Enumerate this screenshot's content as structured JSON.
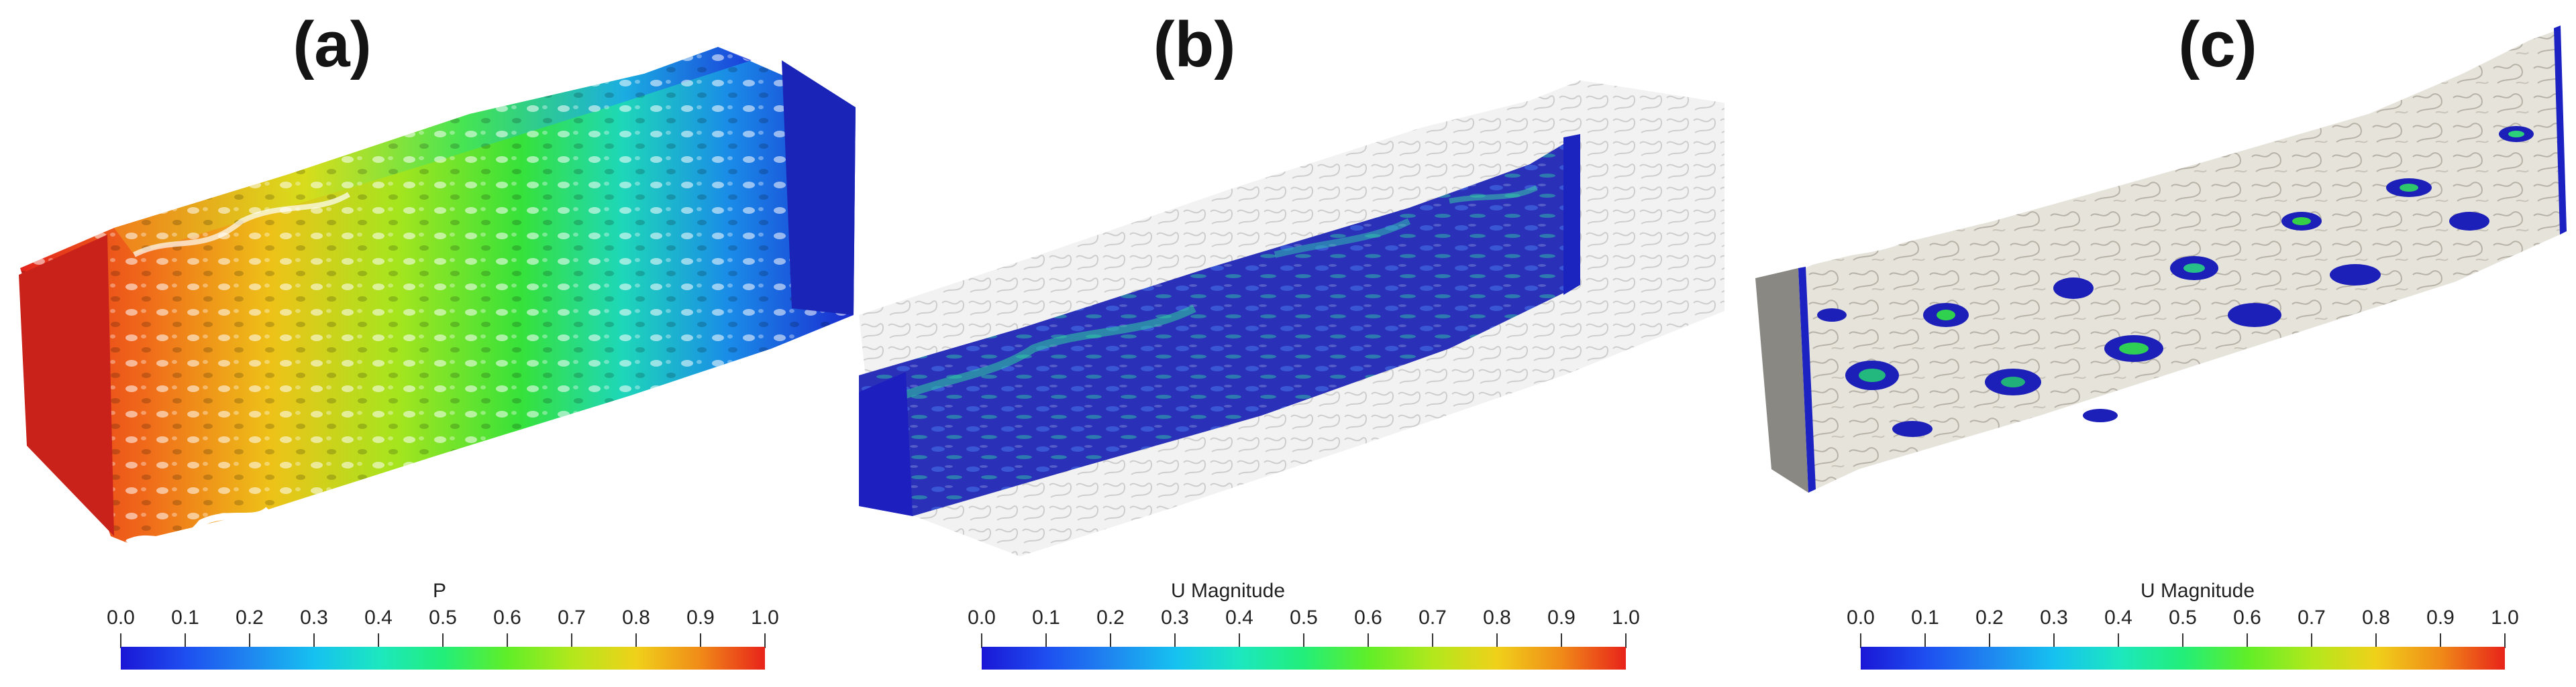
{
  "panels": [
    {
      "label": "(a)",
      "colorbar_title": "P",
      "ticks": [
        "0.0",
        "0.1",
        "0.2",
        "0.3",
        "0.4",
        "0.5",
        "0.6",
        "0.7",
        "0.8",
        "0.9",
        "1.0"
      ]
    },
    {
      "label": "(b)",
      "colorbar_title": "U Magnitude",
      "ticks": [
        "0.0",
        "0.1",
        "0.2",
        "0.3",
        "0.4",
        "0.5",
        "0.6",
        "0.7",
        "0.8",
        "0.9",
        "1.0"
      ]
    },
    {
      "label": "(c)",
      "colorbar_title": "U Magnitude",
      "ticks": [
        "0.0",
        "0.1",
        "0.2",
        "0.3",
        "0.4",
        "0.5",
        "0.6",
        "0.7",
        "0.8",
        "0.9",
        "1.0"
      ]
    }
  ],
  "colors": {
    "colormap": [
      "#1a17d6",
      "#1e4ef0",
      "#1f86f0",
      "#16c1f0",
      "#1ce7c0",
      "#22ee7a",
      "#60ee28",
      "#b2e81c",
      "#f0d11a",
      "#f08a18",
      "#e8231a"
    ],
    "rock": "#e7e4dc",
    "rock_shadow": "#8a8882",
    "ghost": "#c9c9c9"
  }
}
